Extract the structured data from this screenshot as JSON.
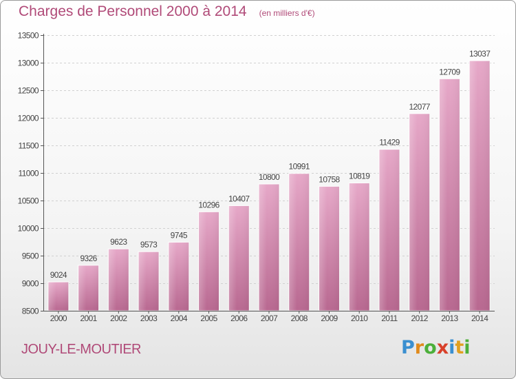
{
  "title": "Charges de Personnel 2000 à 2014",
  "subtitle": "(en milliers d'€)",
  "town": "JOUY-LE-MOUTIER",
  "logo": {
    "letters": [
      "P",
      "r",
      "o",
      "x",
      "i",
      "t",
      "i"
    ],
    "colors": [
      "#3a8fd0",
      "#e08a1c",
      "#4caf3a",
      "#d8402a",
      "#3a8fd0",
      "#e0a020",
      "#4caf3a"
    ]
  },
  "colors": {
    "bar": "#c9709c",
    "bar_light": "#e8b0cc",
    "text": "#b04a78"
  },
  "chart_data": {
    "type": "bar",
    "title": "Charges de Personnel 2000 à 2014",
    "subtitle": "(en milliers d'€)",
    "categories": [
      "2000",
      "2001",
      "2002",
      "2003",
      "2004",
      "2005",
      "2006",
      "2007",
      "2008",
      "2009",
      "2010",
      "2011",
      "2012",
      "2013",
      "2014"
    ],
    "values": [
      9024,
      9326,
      9623,
      9573,
      9745,
      10296,
      10407,
      10800,
      10991,
      10758,
      10819,
      11429,
      12077,
      12709,
      13037
    ],
    "ylim": [
      8500,
      13500
    ],
    "yticks": [
      8500,
      9000,
      9500,
      10000,
      10500,
      11000,
      11500,
      12000,
      12500,
      13000,
      13500
    ],
    "grid": true
  }
}
